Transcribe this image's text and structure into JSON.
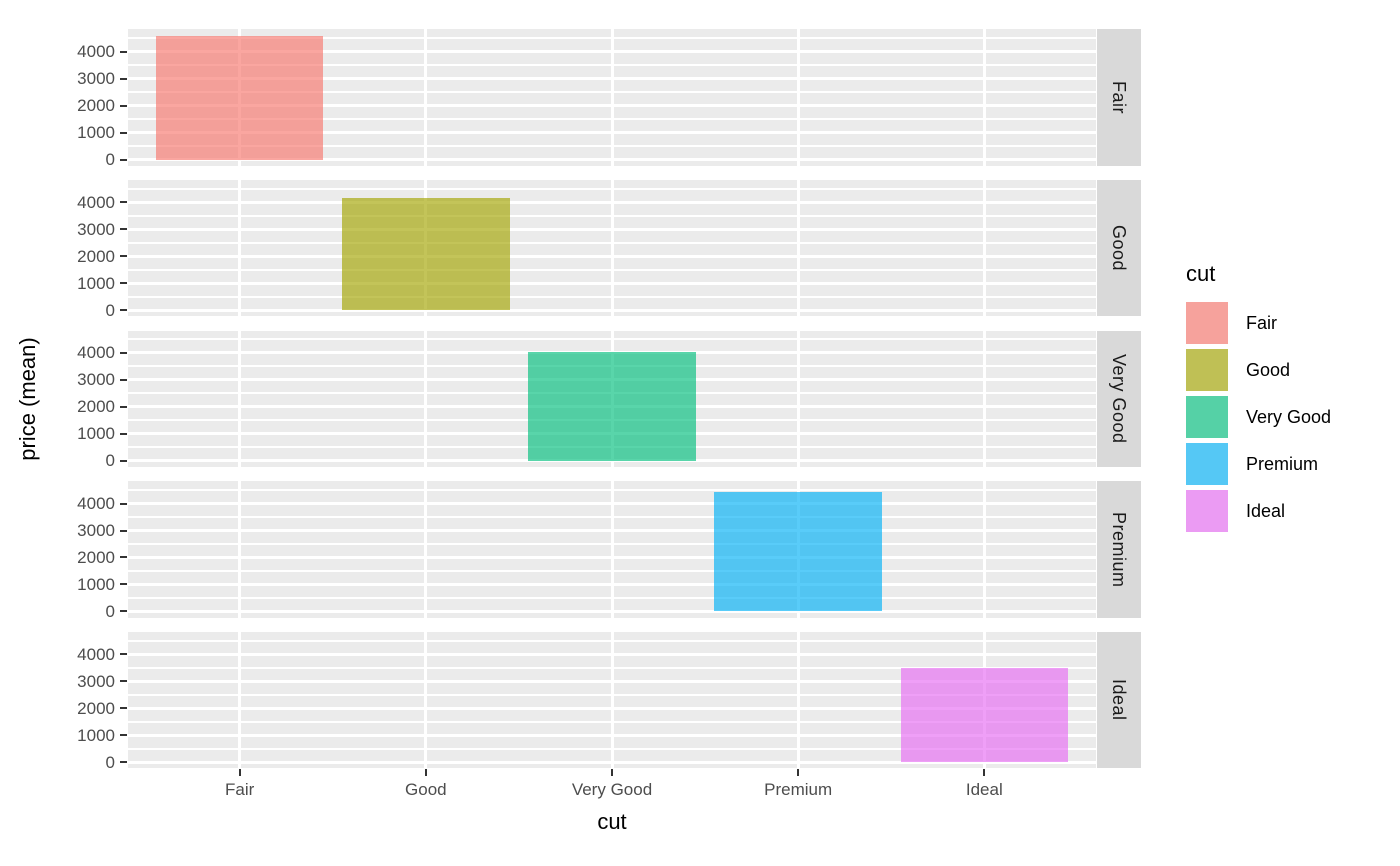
{
  "chart_data": {
    "type": "bar",
    "title": "",
    "categories": [
      "Fair",
      "Good",
      "Very Good",
      "Premium",
      "Ideal"
    ],
    "values": [
      4600,
      4150,
      4050,
      4420,
      3500
    ],
    "xlabel": "cut",
    "ylabel": "price (mean)",
    "y_major_ticks": [
      0,
      1000,
      2000,
      3000,
      4000
    ],
    "y_minor_ticks": [
      500,
      1500,
      2500,
      3500,
      4500
    ],
    "ylim": [
      -230,
      4830
    ],
    "grid": "white major and minor gridlines on grey panels",
    "legend_position": "right",
    "facets": {
      "variable": "cut",
      "labels": [
        "Fair",
        "Good",
        "Very Good",
        "Premium",
        "Ideal"
      ],
      "arrangement": "rows",
      "strip_side": "right"
    },
    "bar_alpha": 0.65,
    "bar_colors": {
      "Fair": "#F8766D",
      "Good": "#A3A500",
      "Very Good": "#00BF7D",
      "Premium": "#00B0F6",
      "Ideal": "#E76BF3"
    }
  },
  "axes": {
    "x_title": "cut",
    "y_title": "price (mean)",
    "x_tick_labels": [
      "Fair",
      "Good",
      "Very Good",
      "Premium",
      "Ideal"
    ],
    "y_tick_labels": [
      "0",
      "1000",
      "2000",
      "3000",
      "4000"
    ]
  },
  "legend": {
    "title": "cut",
    "entries": [
      {
        "label": "Fair",
        "color": "#F8766D"
      },
      {
        "label": "Good",
        "color": "#A3A500"
      },
      {
        "label": "Very Good",
        "color": "#00BF7D"
      },
      {
        "label": "Premium",
        "color": "#00B0F6"
      },
      {
        "label": "Ideal",
        "color": "#E76BF3"
      }
    ]
  },
  "colors": {
    "background": "#FFFFFF",
    "panel_bg": "#EBEBEB",
    "grid": "#FFFFFF",
    "strip_bg": "#D9D9D9",
    "strip_text": "#1A1A1A",
    "tick_text": "#4D4D4D",
    "tick_mark": "#333333",
    "axis_title_text": "#000000",
    "legend_key_bg": "#F2F2F2"
  }
}
